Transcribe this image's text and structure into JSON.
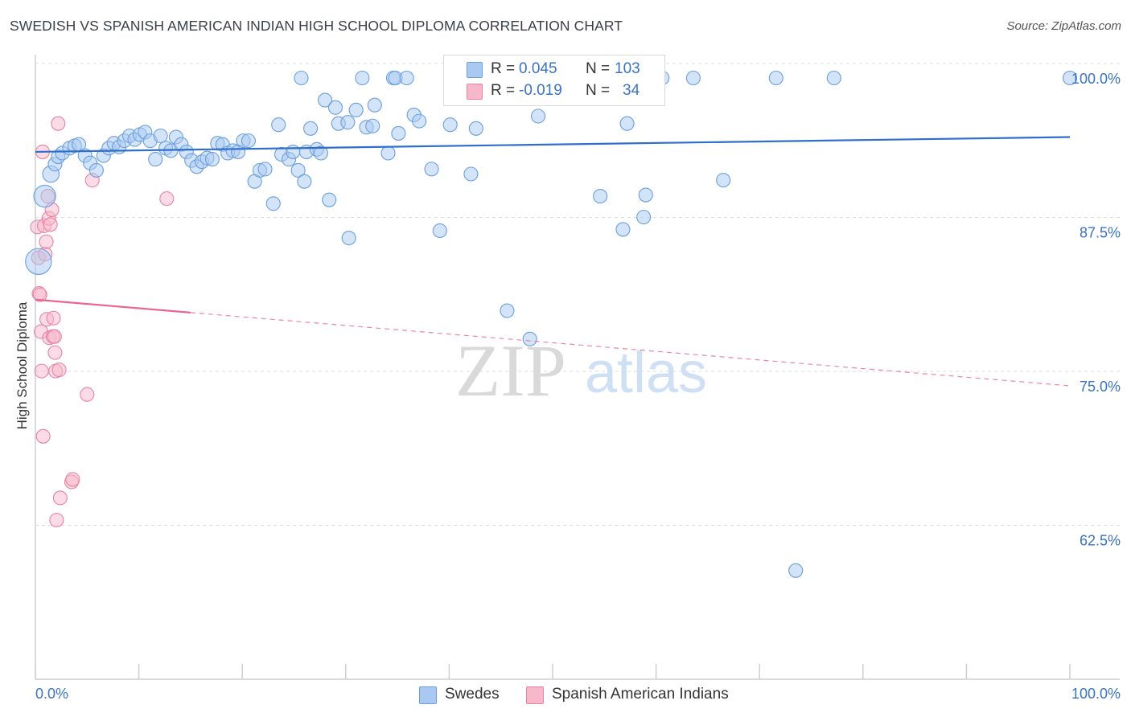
{
  "title": "SWEDISH VS SPANISH AMERICAN INDIAN HIGH SCHOOL DIPLOMA CORRELATION CHART",
  "source": "Source: ZipAtlas.com",
  "watermark": {
    "zip": "ZIP",
    "atlas": "atlas"
  },
  "colors": {
    "blue_fill": "#a9c9f2",
    "blue_stroke": "#6a9fdc",
    "blue_line": "#2f6fcc",
    "pink_fill": "#f7b8cb",
    "pink_stroke": "#e883a3",
    "pink_line": "#e8678f",
    "axis_text": "#3a72c4",
    "grid": "#dcdcdc"
  },
  "legend": {
    "rows": [
      {
        "r_label": "R =",
        "r_value": "0.045",
        "n_label": "N =",
        "n_value": "103"
      },
      {
        "r_label": "R =",
        "r_value": "-0.019",
        "n_label": "N =",
        "n_value": "34"
      }
    ]
  },
  "bottom_legend": {
    "series1": "Swedes",
    "series2": "Spanish American Indians"
  },
  "chart_data": {
    "type": "scatter",
    "ylabel": "High School Diploma",
    "xlabel": "",
    "xlim": [
      0,
      100
    ],
    "ylim": [
      50,
      101.5
    ],
    "x_tick_labels": [
      "0.0%",
      "100.0%"
    ],
    "y_ticks": [
      {
        "value": 100,
        "label": "100.0%"
      },
      {
        "value": 87.5,
        "label": "87.5%"
      },
      {
        "value": 75,
        "label": "75.0%"
      },
      {
        "value": 62.5,
        "label": "62.5%"
      }
    ],
    "series": [
      {
        "name": "Swedes",
        "color": "blue",
        "trend": {
          "x0": 0,
          "y0": 94.0,
          "x1": 100,
          "y1": 95.2,
          "solid_until": 100
        },
        "points": [
          [
            0.9,
            90.4,
            1.6
          ],
          [
            0.3,
            85.1,
            1.9
          ],
          [
            1.5,
            92.2,
            1.2
          ],
          [
            1.9,
            93.0,
            1.0
          ],
          [
            2.2,
            93.6,
            1.0
          ],
          [
            2.6,
            93.9,
            1.0
          ],
          [
            3.3,
            94.3,
            1.0
          ],
          [
            3.8,
            94.5,
            1.0
          ],
          [
            4.2,
            94.6,
            1.0
          ],
          [
            4.8,
            93.7,
            1.0
          ],
          [
            5.3,
            93.1,
            1.0
          ],
          [
            5.9,
            92.5,
            1.0
          ],
          [
            6.6,
            93.7,
            1.0
          ],
          [
            7.1,
            94.3,
            1.0
          ],
          [
            7.6,
            94.7,
            1.0
          ],
          [
            8.1,
            94.4,
            1.0
          ],
          [
            8.6,
            94.9,
            1.0
          ],
          [
            9.1,
            95.3,
            1.0
          ],
          [
            9.6,
            95.0,
            1.0
          ],
          [
            10.1,
            95.4,
            1.0
          ],
          [
            10.6,
            95.6,
            1.0
          ],
          [
            11.1,
            94.9,
            1.0
          ],
          [
            11.6,
            93.4,
            1.0
          ],
          [
            12.1,
            95.3,
            1.0
          ],
          [
            12.6,
            94.3,
            1.0
          ],
          [
            13.1,
            94.1,
            1.0
          ],
          [
            13.6,
            95.2,
            1.0
          ],
          [
            14.1,
            94.6,
            1.0
          ],
          [
            14.6,
            94.0,
            1.0
          ],
          [
            15.1,
            93.3,
            1.0
          ],
          [
            15.6,
            92.8,
            1.0
          ],
          [
            16.1,
            93.2,
            1.0
          ],
          [
            16.6,
            93.5,
            1.0
          ],
          [
            17.1,
            93.4,
            1.0
          ],
          [
            17.6,
            94.7,
            1.0
          ],
          [
            18.1,
            94.6,
            1.0
          ],
          [
            18.6,
            93.9,
            1.0
          ],
          [
            19.1,
            94.1,
            1.0
          ],
          [
            19.6,
            94.0,
            1.0
          ],
          [
            20.1,
            94.9,
            1.0
          ],
          [
            20.6,
            94.9,
            1.0
          ],
          [
            21.2,
            91.6,
            1.0
          ],
          [
            21.7,
            92.5,
            1.0
          ],
          [
            22.2,
            92.6,
            1.0
          ],
          [
            23.0,
            89.8,
            1.0
          ],
          [
            23.5,
            96.2,
            1.0
          ],
          [
            23.8,
            93.8,
            1.0
          ],
          [
            24.5,
            93.4,
            1.0
          ],
          [
            24.9,
            94.0,
            1.0
          ],
          [
            25.4,
            92.5,
            1.0
          ],
          [
            25.7,
            100.0,
            1.0
          ],
          [
            26.0,
            91.6,
            1.0
          ],
          [
            26.2,
            94.0,
            1.0
          ],
          [
            26.6,
            95.9,
            1.0
          ],
          [
            27.2,
            94.2,
            1.0
          ],
          [
            27.6,
            93.9,
            1.0
          ],
          [
            28.0,
            98.2,
            1.0
          ],
          [
            28.4,
            90.1,
            1.0
          ],
          [
            29.0,
            97.6,
            1.0
          ],
          [
            29.3,
            96.3,
            1.0
          ],
          [
            30.2,
            96.4,
            1.0
          ],
          [
            30.3,
            87.0,
            1.0
          ],
          [
            31.0,
            97.4,
            1.0
          ],
          [
            31.6,
            100.0,
            1.0
          ],
          [
            32.0,
            96.0,
            1.0
          ],
          [
            32.6,
            96.1,
            1.0
          ],
          [
            32.8,
            97.8,
            1.0
          ],
          [
            34.1,
            93.9,
            1.0
          ],
          [
            34.6,
            100.0,
            1.0
          ],
          [
            34.8,
            100.0,
            1.0
          ],
          [
            35.1,
            95.5,
            1.0
          ],
          [
            35.9,
            100.0,
            1.0
          ],
          [
            36.6,
            97.0,
            1.0
          ],
          [
            37.1,
            96.5,
            1.0
          ],
          [
            38.3,
            92.6,
            1.0
          ],
          [
            39.1,
            87.6,
            1.0
          ],
          [
            40.1,
            96.2,
            1.0
          ],
          [
            41.1,
            100.0,
            1.0
          ],
          [
            41.8,
            100.0,
            1.0
          ],
          [
            42.1,
            92.2,
            1.0
          ],
          [
            42.6,
            95.9,
            1.0
          ],
          [
            45.6,
            81.1,
            1.0
          ],
          [
            46.6,
            100.0,
            1.0
          ],
          [
            47.8,
            78.8,
            1.0
          ],
          [
            48.6,
            96.9,
            1.0
          ],
          [
            50.1,
            100.0,
            1.0
          ],
          [
            54.3,
            100.0,
            1.0
          ],
          [
            54.6,
            90.4,
            1.0
          ],
          [
            56.8,
            87.7,
            1.0
          ],
          [
            56.9,
            100.0,
            1.0
          ],
          [
            57.2,
            96.3,
            1.0
          ],
          [
            58.8,
            88.7,
            1.0
          ],
          [
            59.0,
            90.5,
            1.0
          ],
          [
            60.6,
            100.0,
            1.0
          ],
          [
            63.6,
            100.0,
            1.0
          ],
          [
            66.5,
            91.7,
            1.0
          ],
          [
            71.6,
            100.0,
            1.0
          ],
          [
            73.5,
            60.0,
            1.0
          ],
          [
            77.2,
            100.0,
            1.0
          ],
          [
            100.0,
            100.0,
            1.0
          ]
        ]
      },
      {
        "name": "Spanish American Indians",
        "color": "pink",
        "trend": {
          "x0": 0,
          "y0": 82.0,
          "x1": 100,
          "y1": 75.0,
          "solid_until": 15
        },
        "points": [
          [
            0.2,
            87.9,
            1.0
          ],
          [
            0.3,
            85.4,
            1.0
          ],
          [
            0.35,
            82.5,
            1.0
          ],
          [
            0.45,
            82.4,
            1.0
          ],
          [
            0.55,
            79.4,
            1.0
          ],
          [
            0.6,
            76.2,
            1.0
          ],
          [
            0.7,
            94.0,
            1.0
          ],
          [
            0.75,
            70.9,
            1.0
          ],
          [
            0.85,
            88.0,
            1.0
          ],
          [
            0.95,
            85.7,
            1.0
          ],
          [
            1.05,
            86.7,
            1.0
          ],
          [
            1.1,
            80.4,
            1.0
          ],
          [
            1.2,
            90.4,
            1.0
          ],
          [
            1.3,
            88.6,
            1.0
          ],
          [
            1.35,
            78.9,
            1.0
          ],
          [
            1.45,
            88.1,
            1.0
          ],
          [
            1.6,
            89.3,
            1.0
          ],
          [
            1.7,
            79.0,
            1.0
          ],
          [
            1.75,
            80.5,
            1.0
          ],
          [
            1.85,
            79.0,
            1.0
          ],
          [
            1.9,
            77.7,
            1.0
          ],
          [
            1.95,
            76.2,
            1.0
          ],
          [
            2.05,
            64.1,
            1.0
          ],
          [
            2.2,
            96.3,
            1.0
          ],
          [
            2.3,
            76.3,
            1.0
          ],
          [
            2.4,
            65.9,
            1.0
          ],
          [
            3.5,
            67.2,
            1.0
          ],
          [
            3.6,
            67.4,
            1.0
          ],
          [
            5.0,
            74.3,
            1.0
          ],
          [
            5.5,
            91.7,
            1.0
          ],
          [
            12.7,
            90.2,
            1.0
          ]
        ]
      }
    ]
  }
}
